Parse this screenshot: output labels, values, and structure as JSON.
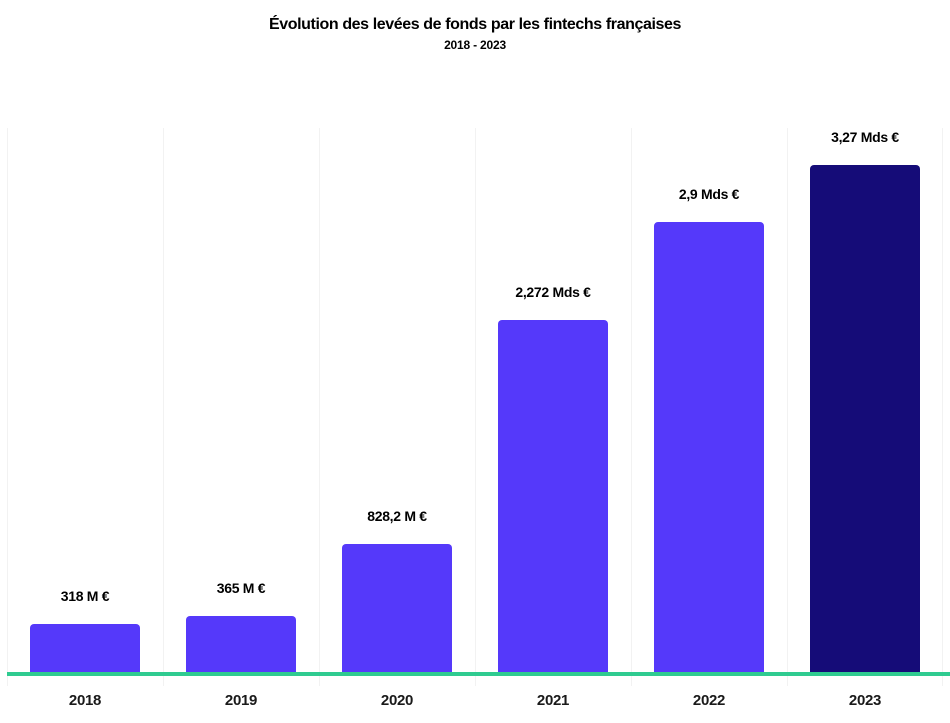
{
  "chart": {
    "title": "Évolution des levées de fonds par les fintechs françaises",
    "subtitle": "2018 - 2023"
  },
  "chart_data": {
    "type": "bar",
    "title": "Évolution des levées de fonds par les fintechs françaises",
    "subtitle": "2018 - 2023",
    "categories": [
      "2018",
      "2019",
      "2020",
      "2021",
      "2022",
      "2023"
    ],
    "values_millions_eur": [
      318,
      365,
      828.2,
      2272,
      2900,
      3270
    ],
    "value_labels": [
      "318 M €",
      "365 M €",
      "828,2 M €",
      "2,272 Mds €",
      "2,9 Mds €",
      "3,27 Mds €"
    ],
    "xlabel": "",
    "ylabel": "",
    "ylim": [
      0,
      3270
    ],
    "legend": "none",
    "grid": "vertical category separators only",
    "colors": {
      "bar_default": "#5539FA",
      "bar_highlight_last": "#150C78",
      "baseline": "#2FCB90",
      "gridline": "#F2F2F2",
      "label_text": "#000000",
      "axis_text": "#1A1A1A",
      "background": "#FFFFFF"
    }
  }
}
